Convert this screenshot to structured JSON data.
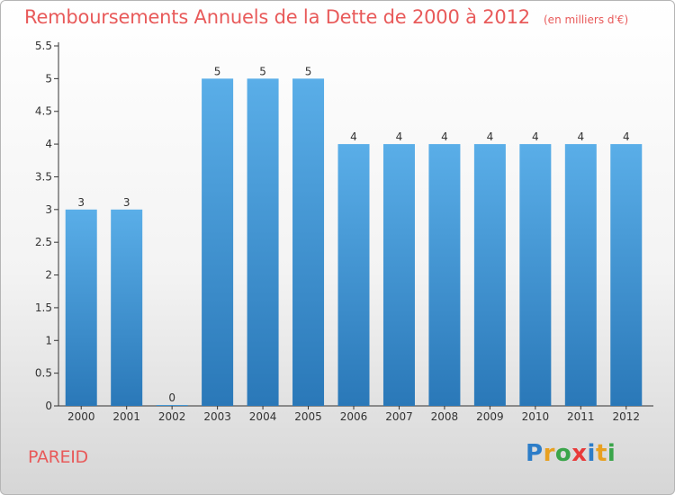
{
  "chart_data": {
    "type": "bar",
    "title": "Remboursements Annuels de la Dette de 2000 à 2012",
    "subtitle": "(en milliers d'€)",
    "categories": [
      "2000",
      "2001",
      "2002",
      "2003",
      "2004",
      "2005",
      "2006",
      "2007",
      "2008",
      "2009",
      "2010",
      "2011",
      "2012"
    ],
    "values": [
      3,
      3,
      0,
      5,
      5,
      5,
      4,
      4,
      4,
      4,
      4,
      4,
      4
    ],
    "value_labels": [
      "3",
      "3",
      "0",
      "5",
      "5",
      "5",
      "4",
      "4",
      "4",
      "4",
      "4",
      "4",
      "4"
    ],
    "yticks": [
      "0",
      "0.5",
      "1",
      "1.5",
      "2",
      "2.5",
      "3",
      "3.5",
      "4",
      "4.5",
      "5",
      "5.5"
    ],
    "ylim": [
      0,
      5.5
    ],
    "xlabel": "",
    "ylabel": "",
    "grid": false,
    "legend": "none",
    "bar_color_top": "#5aaee8",
    "bar_color_bottom": "#2a78b8"
  },
  "footer": {
    "commune": "PAREID"
  },
  "logo": {
    "letters": [
      {
        "char": "P",
        "color": "#2d7dc8"
      },
      {
        "char": "r",
        "color": "#e8a020"
      },
      {
        "char": "o",
        "color": "#3aa54a"
      },
      {
        "char": "x",
        "color": "#e83a3a"
      },
      {
        "char": "i",
        "color": "#2d7dc8"
      },
      {
        "char": "t",
        "color": "#e8a020"
      },
      {
        "char": "i",
        "color": "#3aa54a"
      }
    ]
  },
  "colors": {
    "title": "#e85a5a",
    "axis": "#333333"
  }
}
